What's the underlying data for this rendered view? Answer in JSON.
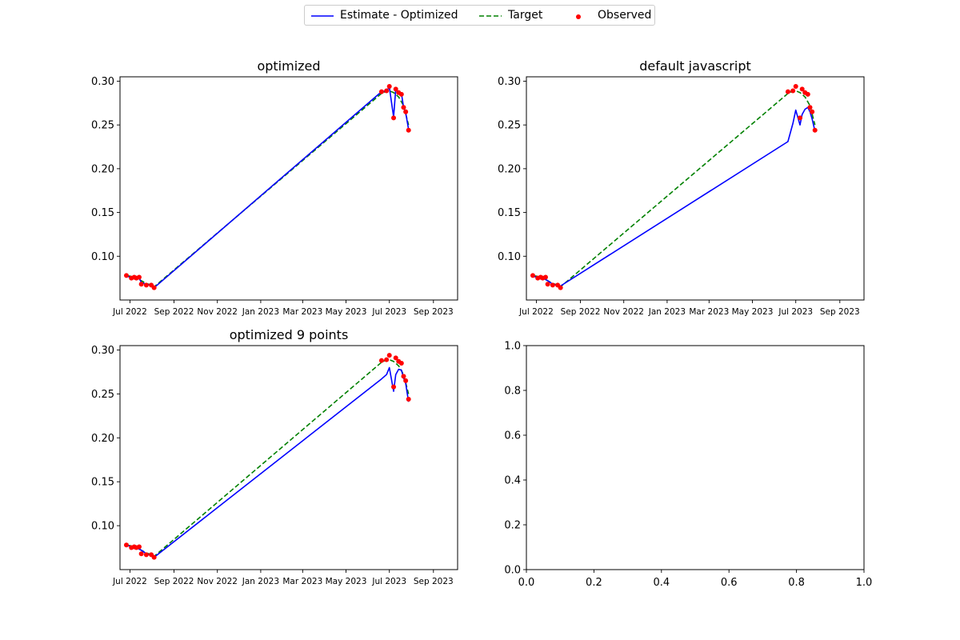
{
  "legend": {
    "estimate": "Estimate - Optimized",
    "target": "Target",
    "observed": "Observed"
  },
  "colors": {
    "estimate": "#0000ff",
    "target": "#008000",
    "observed": "#ff0000"
  },
  "chart_data": [
    {
      "type": "line",
      "title": "optimized",
      "xlabel": "",
      "ylabel": "",
      "x_axis": "date",
      "x_ticks": [
        "2022-07-01",
        "2022-09-01",
        "2022-11-01",
        "2023-01-01",
        "2023-03-01",
        "2023-05-01",
        "2023-07-01",
        "2023-09-01"
      ],
      "x_tick_labels": [
        "Jul 2022",
        "Sep 2022",
        "Nov 2022",
        "Jan 2023",
        "Mar 2023",
        "May 2023",
        "Jul 2023",
        "Sep 2023"
      ],
      "xlim": [
        "2022-06-17",
        "2023-10-05"
      ],
      "ylim": [
        0.05,
        0.305
      ],
      "y_ticks": [
        0.1,
        0.15,
        0.2,
        0.25,
        0.3
      ],
      "y_tick_labels": [
        "0.10",
        "0.15",
        "0.20",
        "0.25",
        "0.30"
      ],
      "series": [
        {
          "name": "Estimate - Optimized",
          "style": "solid",
          "x": [
            "2022-06-26",
            "2022-07-03",
            "2022-07-07",
            "2022-07-10",
            "2022-07-14",
            "2022-07-17",
            "2022-07-24",
            "2022-07-31",
            "2022-08-04",
            "2023-06-20",
            "2023-06-27",
            "2023-07-01",
            "2023-07-07",
            "2023-07-10",
            "2023-07-14",
            "2023-07-18",
            "2023-07-21",
            "2023-07-24",
            "2023-07-28"
          ],
          "y": [
            0.078,
            0.075,
            0.076,
            0.075,
            0.075,
            0.07,
            0.068,
            0.067,
            0.064,
            0.288,
            0.289,
            0.293,
            0.259,
            0.291,
            0.287,
            0.286,
            0.27,
            0.264,
            0.245
          ]
        },
        {
          "name": "Target",
          "style": "dashed",
          "x": [
            "2022-06-26",
            "2022-07-03",
            "2022-07-10",
            "2022-07-17",
            "2022-07-24",
            "2022-07-31",
            "2022-08-04",
            "2023-06-20",
            "2023-06-27",
            "2023-07-01",
            "2023-07-07",
            "2023-07-14",
            "2023-07-21",
            "2023-07-28"
          ],
          "y": [
            0.078,
            0.077,
            0.075,
            0.072,
            0.069,
            0.067,
            0.065,
            0.286,
            0.289,
            0.289,
            0.287,
            0.282,
            0.272,
            0.25
          ]
        },
        {
          "name": "Observed",
          "style": "markers",
          "x": [
            "2022-06-26",
            "2022-07-03",
            "2022-07-07",
            "2022-07-10",
            "2022-07-14",
            "2022-07-17",
            "2022-07-24",
            "2022-07-31",
            "2022-08-04",
            "2023-06-20",
            "2023-06-27",
            "2023-07-01",
            "2023-07-07",
            "2023-07-10",
            "2023-07-14",
            "2023-07-18",
            "2023-07-21",
            "2023-07-24",
            "2023-07-28"
          ],
          "y": [
            0.078,
            0.075,
            0.076,
            0.075,
            0.076,
            0.068,
            0.067,
            0.067,
            0.064,
            0.288,
            0.289,
            0.294,
            0.258,
            0.291,
            0.287,
            0.285,
            0.27,
            0.265,
            0.244
          ]
        }
      ]
    },
    {
      "type": "line",
      "title": "default javascript",
      "xlabel": "",
      "ylabel": "",
      "x_axis": "date",
      "x_ticks": [
        "2022-07-01",
        "2022-09-01",
        "2022-11-01",
        "2023-01-01",
        "2023-03-01",
        "2023-05-01",
        "2023-07-01",
        "2023-09-01"
      ],
      "x_tick_labels": [
        "Jul 2022",
        "Sep 2022",
        "Nov 2022",
        "Jan 2023",
        "Mar 2023",
        "May 2023",
        "Jul 2023",
        "Sep 2023"
      ],
      "xlim": [
        "2022-06-17",
        "2023-10-05"
      ],
      "ylim": [
        0.05,
        0.305
      ],
      "y_ticks": [
        0.1,
        0.15,
        0.2,
        0.25,
        0.3
      ],
      "y_tick_labels": [
        "0.10",
        "0.15",
        "0.20",
        "0.25",
        "0.30"
      ],
      "series": [
        {
          "name": "Estimate - Optimized",
          "style": "solid",
          "x": [
            "2022-06-26",
            "2022-07-03",
            "2022-07-10",
            "2022-07-17",
            "2022-07-24",
            "2022-07-31",
            "2022-08-04",
            "2023-06-20",
            "2023-06-27",
            "2023-07-01",
            "2023-07-07",
            "2023-07-10",
            "2023-07-14",
            "2023-07-18",
            "2023-07-21",
            "2023-07-24",
            "2023-07-28"
          ],
          "y": [
            0.077,
            0.076,
            0.075,
            0.072,
            0.068,
            0.067,
            0.066,
            0.231,
            0.252,
            0.267,
            0.25,
            0.262,
            0.268,
            0.27,
            0.265,
            0.257,
            0.243
          ]
        },
        {
          "name": "Target",
          "style": "dashed",
          "x": [
            "2022-06-26",
            "2022-07-03",
            "2022-07-10",
            "2022-07-17",
            "2022-07-24",
            "2022-07-31",
            "2022-08-04",
            "2023-06-20",
            "2023-06-27",
            "2023-07-01",
            "2023-07-07",
            "2023-07-14",
            "2023-07-21",
            "2023-07-28"
          ],
          "y": [
            0.078,
            0.077,
            0.075,
            0.072,
            0.069,
            0.067,
            0.065,
            0.286,
            0.289,
            0.289,
            0.287,
            0.282,
            0.272,
            0.25
          ]
        },
        {
          "name": "Observed",
          "style": "markers",
          "x": [
            "2022-06-26",
            "2022-07-03",
            "2022-07-07",
            "2022-07-10",
            "2022-07-14",
            "2022-07-17",
            "2022-07-24",
            "2022-07-31",
            "2022-08-04",
            "2023-06-20",
            "2023-06-27",
            "2023-07-01",
            "2023-07-07",
            "2023-07-10",
            "2023-07-14",
            "2023-07-18",
            "2023-07-21",
            "2023-07-24",
            "2023-07-28"
          ],
          "y": [
            0.078,
            0.075,
            0.076,
            0.075,
            0.076,
            0.068,
            0.067,
            0.067,
            0.064,
            0.288,
            0.289,
            0.294,
            0.258,
            0.291,
            0.287,
            0.285,
            0.27,
            0.265,
            0.244
          ]
        }
      ]
    },
    {
      "type": "line",
      "title": "optimized 9 points",
      "xlabel": "",
      "ylabel": "",
      "x_axis": "date",
      "x_ticks": [
        "2022-07-01",
        "2022-09-01",
        "2022-11-01",
        "2023-01-01",
        "2023-03-01",
        "2023-05-01",
        "2023-07-01",
        "2023-09-01"
      ],
      "x_tick_labels": [
        "Jul 2022",
        "Sep 2022",
        "Nov 2022",
        "Jan 2023",
        "Mar 2023",
        "May 2023",
        "Jul 2023",
        "Sep 2023"
      ],
      "xlim": [
        "2022-06-17",
        "2023-10-05"
      ],
      "ylim": [
        0.05,
        0.305
      ],
      "y_ticks": [
        0.1,
        0.15,
        0.2,
        0.25,
        0.3
      ],
      "y_tick_labels": [
        "0.10",
        "0.15",
        "0.20",
        "0.25",
        "0.30"
      ],
      "series": [
        {
          "name": "Estimate - Optimized",
          "style": "solid",
          "x": [
            "2022-06-26",
            "2022-07-03",
            "2022-07-10",
            "2022-07-17",
            "2022-07-24",
            "2022-07-31",
            "2022-08-04",
            "2023-06-20",
            "2023-06-27",
            "2023-07-01",
            "2023-07-07",
            "2023-07-10",
            "2023-07-14",
            "2023-07-18",
            "2023-07-21",
            "2023-07-24",
            "2023-07-28"
          ],
          "y": [
            0.078,
            0.076,
            0.075,
            0.072,
            0.068,
            0.066,
            0.064,
            0.267,
            0.272,
            0.28,
            0.253,
            0.272,
            0.278,
            0.277,
            0.268,
            0.262,
            0.241
          ]
        },
        {
          "name": "Target",
          "style": "dashed",
          "x": [
            "2022-06-26",
            "2022-07-03",
            "2022-07-10",
            "2022-07-17",
            "2022-07-24",
            "2022-07-31",
            "2022-08-04",
            "2023-06-20",
            "2023-06-27",
            "2023-07-01",
            "2023-07-07",
            "2023-07-14",
            "2023-07-21",
            "2023-07-28"
          ],
          "y": [
            0.078,
            0.077,
            0.075,
            0.072,
            0.069,
            0.067,
            0.065,
            0.286,
            0.289,
            0.289,
            0.287,
            0.282,
            0.272,
            0.25
          ]
        },
        {
          "name": "Observed",
          "style": "markers",
          "x": [
            "2022-06-26",
            "2022-07-03",
            "2022-07-07",
            "2022-07-10",
            "2022-07-14",
            "2022-07-17",
            "2022-07-24",
            "2022-07-31",
            "2022-08-04",
            "2023-06-20",
            "2023-06-27",
            "2023-07-01",
            "2023-07-07",
            "2023-07-10",
            "2023-07-14",
            "2023-07-18",
            "2023-07-21",
            "2023-07-24",
            "2023-07-28"
          ],
          "y": [
            0.078,
            0.075,
            0.076,
            0.075,
            0.076,
            0.068,
            0.067,
            0.067,
            0.064,
            0.288,
            0.289,
            0.294,
            0.258,
            0.291,
            0.287,
            0.285,
            0.27,
            0.265,
            0.244
          ]
        }
      ]
    },
    {
      "type": "line",
      "title": "",
      "xlabel": "",
      "ylabel": "",
      "x_axis": "numeric",
      "xlim": [
        0,
        1
      ],
      "ylim": [
        0,
        1
      ],
      "x_ticks": [
        0,
        0.2,
        0.4,
        0.6,
        0.8,
        1.0
      ],
      "x_tick_labels": [
        "0.0",
        "0.2",
        "0.4",
        "0.6",
        "0.8",
        "1.0"
      ],
      "y_ticks": [
        0,
        0.2,
        0.4,
        0.6,
        0.8,
        1.0
      ],
      "y_tick_labels": [
        "0.0",
        "0.2",
        "0.4",
        "0.6",
        "0.8",
        "1.0"
      ],
      "series": []
    }
  ]
}
